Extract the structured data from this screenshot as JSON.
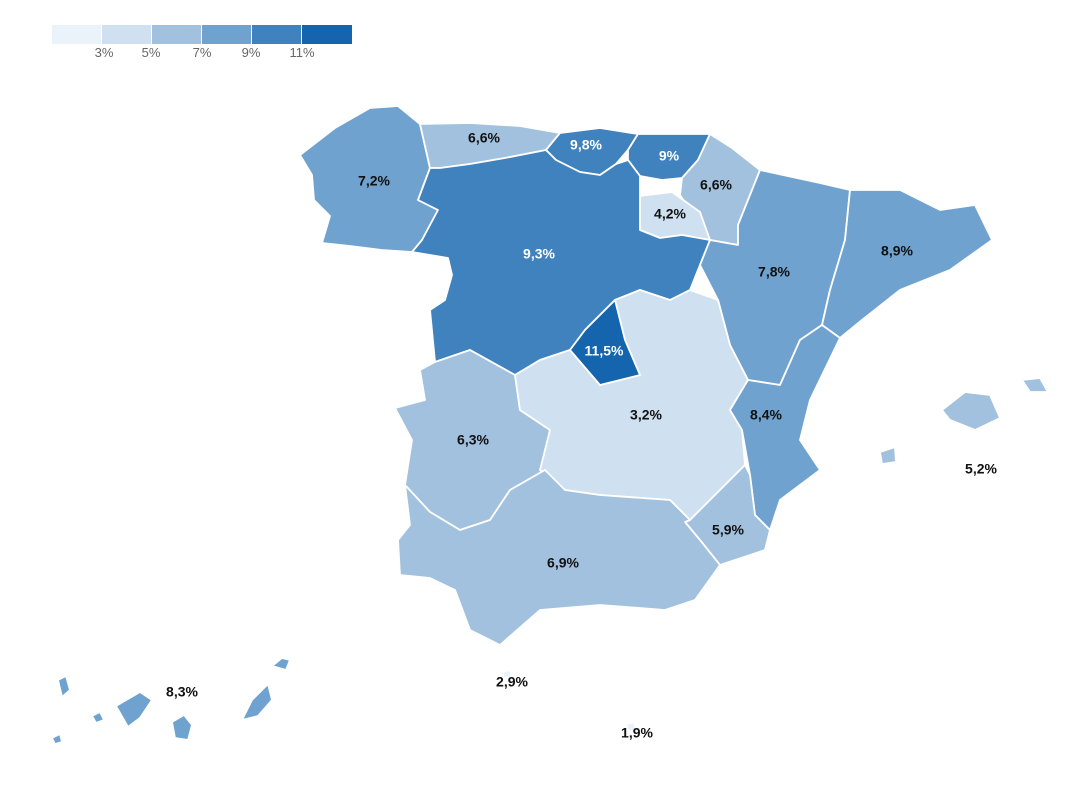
{
  "legend": {
    "ticks": [
      "3%",
      "5%",
      "7%",
      "9%",
      "11%"
    ],
    "colors": [
      "#eaf2fa",
      "#cfe0f0",
      "#a2c1de",
      "#6fa2cf",
      "#3f82bd",
      "#1465ad"
    ]
  },
  "regions": [
    {
      "name": "galicia",
      "label": "7,2%",
      "color": "#6fa2cf",
      "text_color": "#111111"
    },
    {
      "name": "asturias",
      "label": "6,6%",
      "color": "#a2c1de",
      "text_color": "#111111"
    },
    {
      "name": "cantabria",
      "label": "9,8%",
      "color": "#3f82bd",
      "text_color": "#ffffff"
    },
    {
      "name": "pais-vasco",
      "label": "9%",
      "color": "#3f82bd",
      "text_color": "#ffffff"
    },
    {
      "name": "navarra",
      "label": "6,6%",
      "color": "#a2c1de",
      "text_color": "#111111"
    },
    {
      "name": "la-rioja",
      "label": "4,2%",
      "color": "#cfe0f0",
      "text_color": "#111111"
    },
    {
      "name": "castilla-y-leon",
      "label": "9,3%",
      "color": "#3f82bd",
      "text_color": "#ffffff"
    },
    {
      "name": "aragon",
      "label": "7,8%",
      "color": "#6fa2cf",
      "text_color": "#111111"
    },
    {
      "name": "cataluna",
      "label": "8,9%",
      "color": "#6fa2cf",
      "text_color": "#111111"
    },
    {
      "name": "madrid",
      "label": "11,5%",
      "color": "#1465ad",
      "text_color": "#ffffff"
    },
    {
      "name": "castilla-la-mancha",
      "label": "3,2%",
      "color": "#cfe0f0",
      "text_color": "#111111"
    },
    {
      "name": "extremadura",
      "label": "6,3%",
      "color": "#a2c1de",
      "text_color": "#111111"
    },
    {
      "name": "comunidad-valenciana",
      "label": "8,4%",
      "color": "#6fa2cf",
      "text_color": "#111111"
    },
    {
      "name": "murcia",
      "label": "5,9%",
      "color": "#a2c1de",
      "text_color": "#111111"
    },
    {
      "name": "andalucia",
      "label": "6,9%",
      "color": "#a2c1de",
      "text_color": "#111111"
    },
    {
      "name": "baleares",
      "label": "5,2%",
      "color": "#a2c1de",
      "text_color": "#111111"
    },
    {
      "name": "canarias",
      "label": "8,3%",
      "color": "#6fa2cf",
      "text_color": "#111111"
    },
    {
      "name": "ceuta",
      "label": "2,9%",
      "color": "#eaf2fa",
      "text_color": "#111111"
    },
    {
      "name": "melilla",
      "label": "1,9%",
      "color": "#eaf2fa",
      "text_color": "#111111"
    }
  ]
}
